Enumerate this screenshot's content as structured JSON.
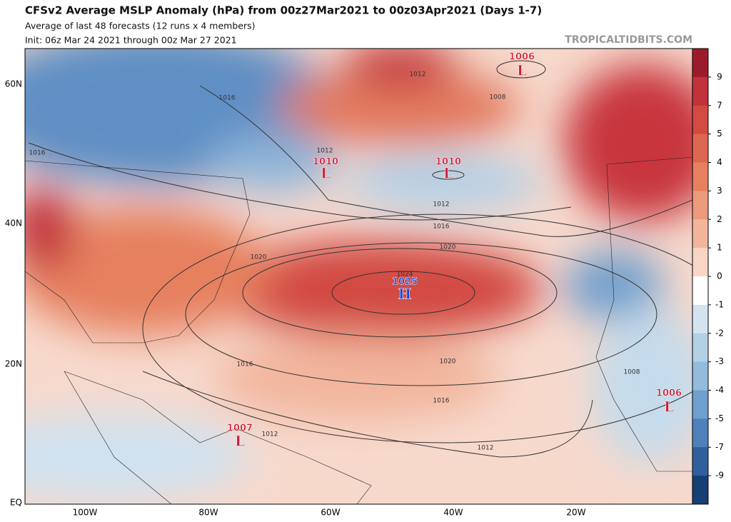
{
  "header": {
    "title": "CFSv2 Average MSLP Anomaly (hPa) from 00z27Mar2021 to 00z03Apr2021 (Days 1-7)",
    "subtitle": "Average of last 48 forecasts (12 runs x 4 members)",
    "init": "Init: 06z Mar 24 2021 through 00z Mar 27 2021",
    "watermark": "TROPICALTIDBITS.COM"
  },
  "map": {
    "lat_labels": [
      "60N",
      "40N",
      "20N",
      "EQ"
    ],
    "lon_labels": [
      "100W",
      "80W",
      "60W",
      "40W",
      "20W"
    ],
    "centers": [
      {
        "value": "1006",
        "letter": "L"
      },
      {
        "value": "1010",
        "letter": "L"
      },
      {
        "value": "1010",
        "letter": "L"
      },
      {
        "value": "1025",
        "letter": "H"
      },
      {
        "value": "1007",
        "letter": "L"
      },
      {
        "value": "1006",
        "letter": "L"
      }
    ],
    "isobar_labels": [
      "1012",
      "1016",
      "1008",
      "1016",
      "1012",
      "1012",
      "1016",
      "1020",
      "1020",
      "1024",
      "1016",
      "1020",
      "1008",
      "1016",
      "1012",
      "1012"
    ]
  },
  "colorbar": {
    "ticks": [
      9,
      7,
      5,
      4,
      3,
      2,
      1,
      0,
      -1,
      -2,
      -3,
      -4,
      -5,
      -7,
      -9
    ],
    "colors": [
      "#9b1b2c",
      "#c1323b",
      "#d24a42",
      "#dd6650",
      "#e6805f",
      "#ec9a7c",
      "#f2b59c",
      "#f8d5c5",
      "#ffffff",
      "#d3e4f0",
      "#b3d0e7",
      "#93bbdc",
      "#6f9fcd",
      "#4e80ba",
      "#2f5f9d",
      "#163f73"
    ]
  }
}
